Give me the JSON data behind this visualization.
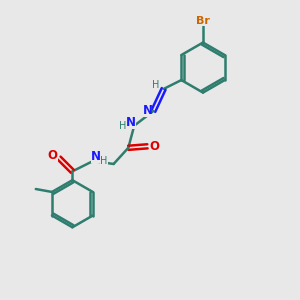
{
  "bg_color": "#e8e8e8",
  "bond_color": "#2e7d6e",
  "N_color": "#1a1aff",
  "O_color": "#dd0000",
  "Br_color": "#cc6600",
  "line_width": 1.8,
  "fig_w": 3.0,
  "fig_h": 3.0,
  "dpi": 100,
  "xlim": [
    0,
    10
  ],
  "ylim": [
    0,
    10
  ]
}
